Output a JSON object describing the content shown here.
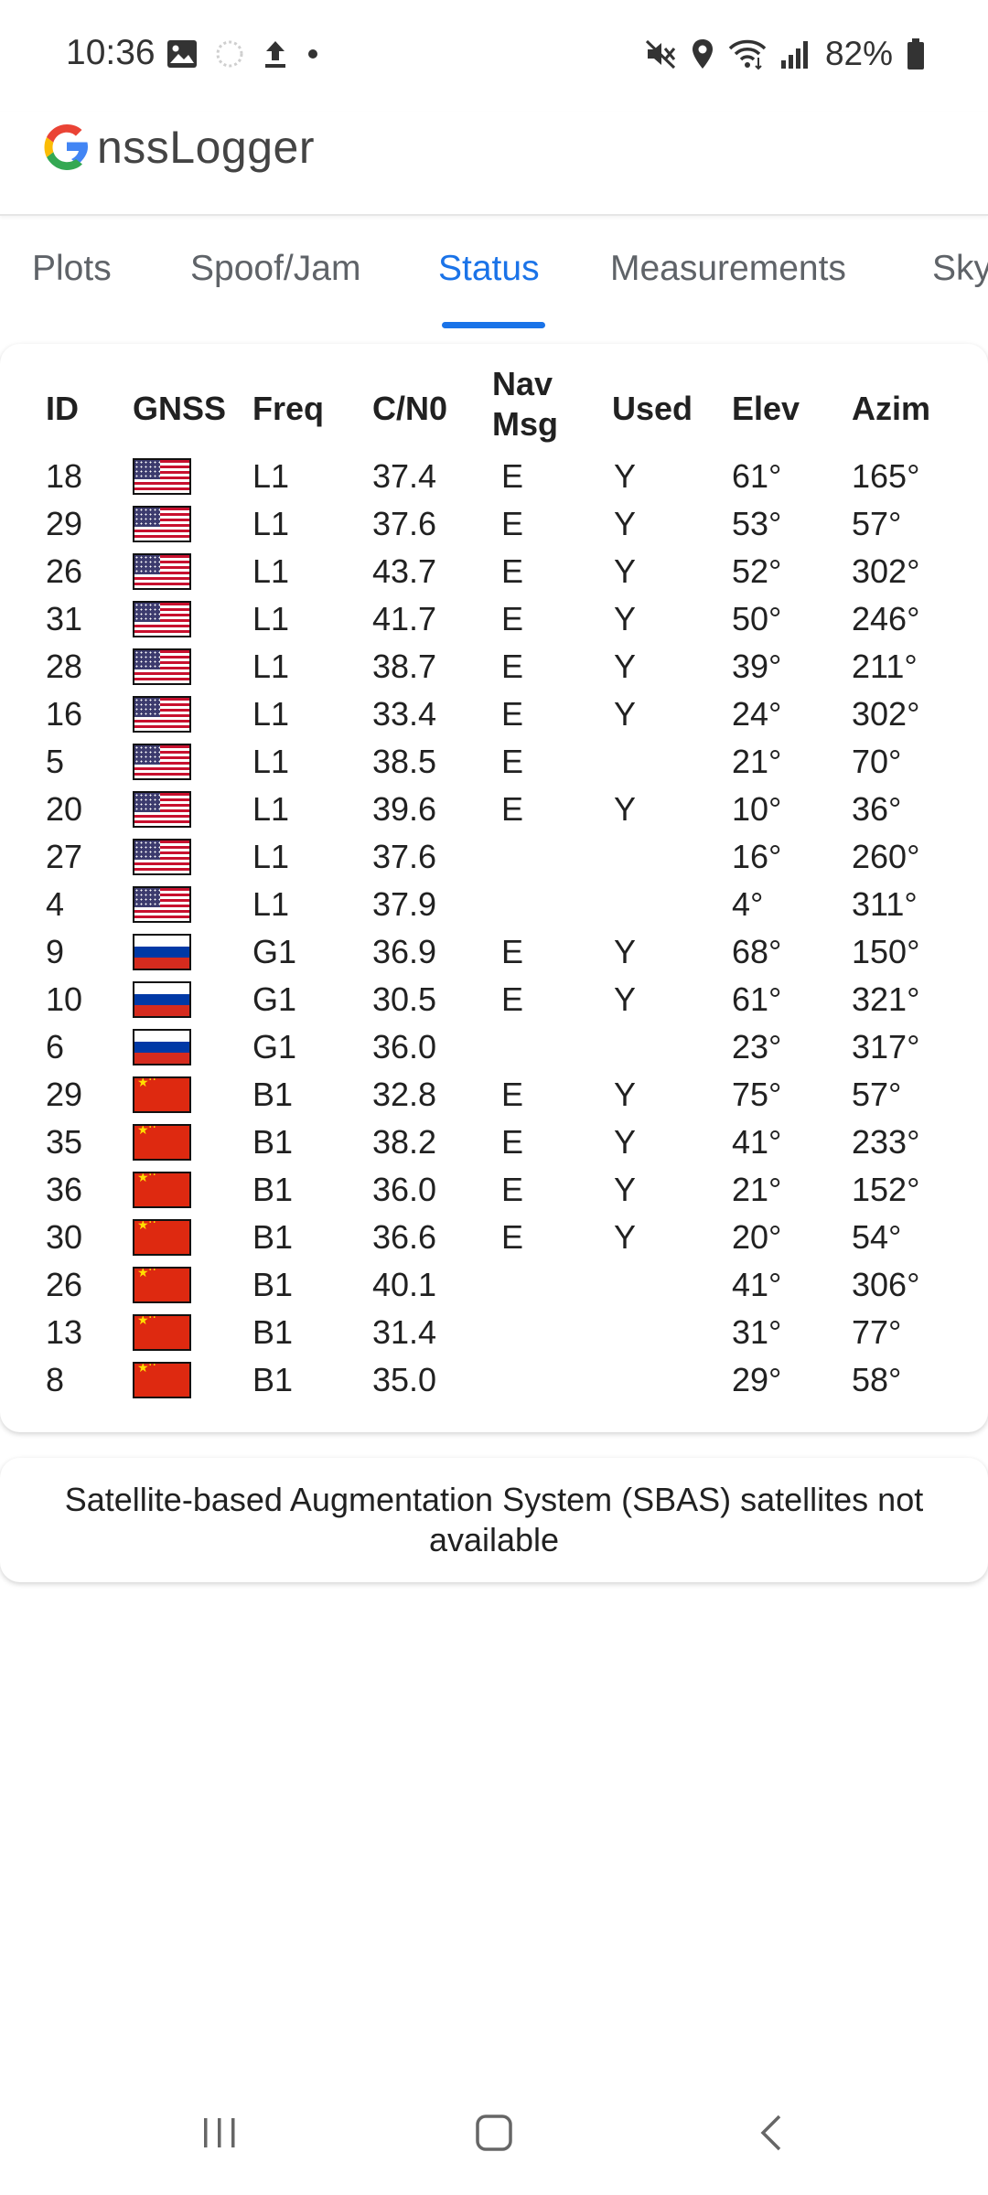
{
  "status_bar": {
    "time": "10:36",
    "battery": "82%",
    "left_icons": [
      "image-icon",
      "loading-icon",
      "upload-icon",
      "dot-icon"
    ],
    "right_icons": [
      "mute-icon",
      "location-icon",
      "wifi-icon",
      "signal-icon",
      "battery-icon"
    ]
  },
  "app": {
    "logo_letter": "G",
    "logo_rest": "nssLogger"
  },
  "tabs": [
    {
      "label": "Plots",
      "active": false
    },
    {
      "label": "Spoof/Jam",
      "active": false
    },
    {
      "label": "Status",
      "active": true
    },
    {
      "label": "Measurements",
      "active": false
    },
    {
      "label": "Sky",
      "active": false
    }
  ],
  "table": {
    "headers": {
      "id": "ID",
      "gnss": "GNSS",
      "freq": "Freq",
      "cn0": "C/N0",
      "nav_line1": "Nav",
      "nav_line2": "Msg",
      "used": "Used",
      "elev": "Elev",
      "azim": "Azim"
    },
    "rows": [
      {
        "id": "18",
        "gnss": "us",
        "freq": "L1",
        "cn0": "37.4",
        "nav": "E",
        "used": "Y",
        "elev": "61°",
        "azim": "165°"
      },
      {
        "id": "29",
        "gnss": "us",
        "freq": "L1",
        "cn0": "37.6",
        "nav": "E",
        "used": "Y",
        "elev": "53°",
        "azim": "57°"
      },
      {
        "id": "26",
        "gnss": "us",
        "freq": "L1",
        "cn0": "43.7",
        "nav": "E",
        "used": "Y",
        "elev": "52°",
        "azim": "302°"
      },
      {
        "id": "31",
        "gnss": "us",
        "freq": "L1",
        "cn0": "41.7",
        "nav": "E",
        "used": "Y",
        "elev": "50°",
        "azim": "246°"
      },
      {
        "id": "28",
        "gnss": "us",
        "freq": "L1",
        "cn0": "38.7",
        "nav": "E",
        "used": "Y",
        "elev": "39°",
        "azim": "211°"
      },
      {
        "id": "16",
        "gnss": "us",
        "freq": "L1",
        "cn0": "33.4",
        "nav": "E",
        "used": "Y",
        "elev": "24°",
        "azim": "302°"
      },
      {
        "id": "5",
        "gnss": "us",
        "freq": "L1",
        "cn0": "38.5",
        "nav": "E",
        "used": "",
        "elev": "21°",
        "azim": "70°"
      },
      {
        "id": "20",
        "gnss": "us",
        "freq": "L1",
        "cn0": "39.6",
        "nav": "E",
        "used": "Y",
        "elev": "10°",
        "azim": "36°"
      },
      {
        "id": "27",
        "gnss": "us",
        "freq": "L1",
        "cn0": "37.6",
        "nav": "",
        "used": "",
        "elev": "16°",
        "azim": "260°"
      },
      {
        "id": "4",
        "gnss": "us",
        "freq": "L1",
        "cn0": "37.9",
        "nav": "",
        "used": "",
        "elev": "4°",
        "azim": "311°"
      },
      {
        "id": "9",
        "gnss": "ru",
        "freq": "G1",
        "cn0": "36.9",
        "nav": "E",
        "used": "Y",
        "elev": "68°",
        "azim": "150°"
      },
      {
        "id": "10",
        "gnss": "ru",
        "freq": "G1",
        "cn0": "30.5",
        "nav": "E",
        "used": "Y",
        "elev": "61°",
        "azim": "321°"
      },
      {
        "id": "6",
        "gnss": "ru",
        "freq": "G1",
        "cn0": "36.0",
        "nav": "",
        "used": "",
        "elev": "23°",
        "azim": "317°"
      },
      {
        "id": "29",
        "gnss": "cn",
        "freq": "B1",
        "cn0": "32.8",
        "nav": "E",
        "used": "Y",
        "elev": "75°",
        "azim": "57°"
      },
      {
        "id": "35",
        "gnss": "cn",
        "freq": "B1",
        "cn0": "38.2",
        "nav": "E",
        "used": "Y",
        "elev": "41°",
        "azim": "233°"
      },
      {
        "id": "36",
        "gnss": "cn",
        "freq": "B1",
        "cn0": "36.0",
        "nav": "E",
        "used": "Y",
        "elev": "21°",
        "azim": "152°"
      },
      {
        "id": "30",
        "gnss": "cn",
        "freq": "B1",
        "cn0": "36.6",
        "nav": "E",
        "used": "Y",
        "elev": "20°",
        "azim": "54°"
      },
      {
        "id": "26",
        "gnss": "cn",
        "freq": "B1",
        "cn0": "40.1",
        "nav": "",
        "used": "",
        "elev": "41°",
        "azim": "306°"
      },
      {
        "id": "13",
        "gnss": "cn",
        "freq": "B1",
        "cn0": "31.4",
        "nav": "",
        "used": "",
        "elev": "31°",
        "azim": "77°"
      },
      {
        "id": "8",
        "gnss": "cn",
        "freq": "B1",
        "cn0": "35.0",
        "nav": "",
        "used": "",
        "elev": "29°",
        "azim": "58°"
      }
    ]
  },
  "sbas": {
    "message": "Satellite-based Augmentation System (SBAS) satellites not available"
  },
  "nav_bar": {
    "buttons": [
      "recent-apps-icon",
      "home-icon",
      "back-icon"
    ]
  },
  "colors": {
    "accent": "#1a73e8",
    "tab_inactive": "#5f6368",
    "text": "#212121"
  }
}
